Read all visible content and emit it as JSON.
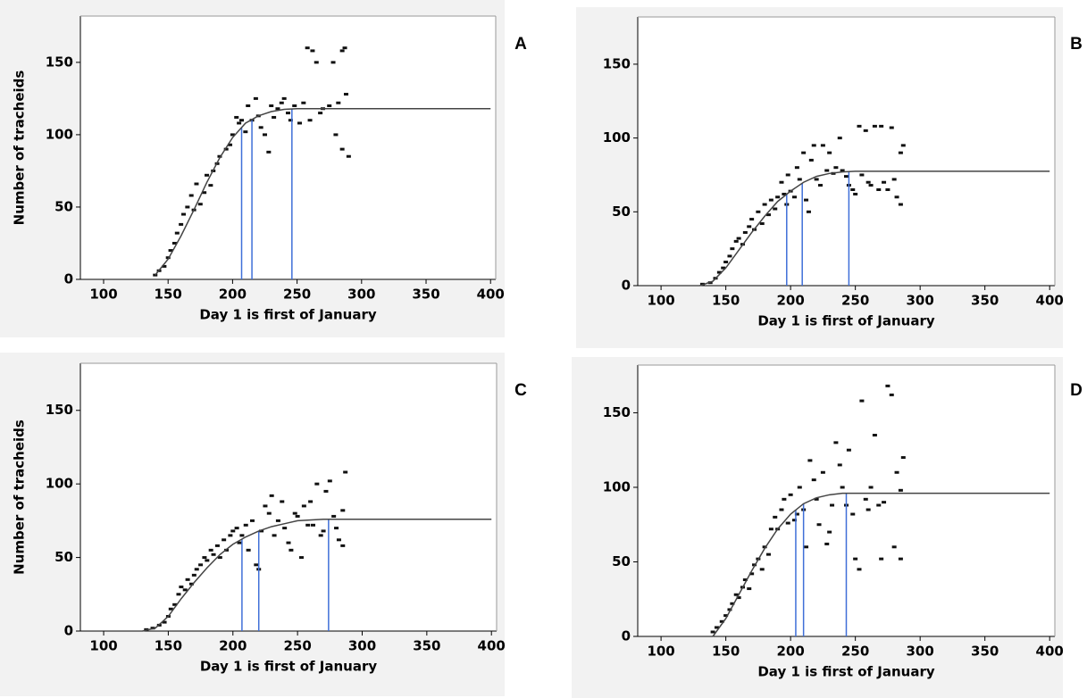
{
  "chart_data": [
    {
      "type": "scatter",
      "label": "A",
      "x_label": "Day 1 is first of January",
      "y_label": "Number of tracheids",
      "xlim": [
        82,
        404
      ],
      "ylim": [
        0,
        182
      ],
      "xticks": [
        100,
        150,
        200,
        250,
        300,
        350,
        400
      ],
      "yticks": [
        0,
        50,
        100,
        150
      ],
      "point_color": "#111111",
      "curve_color": "#444444",
      "vline_color": "#3f6fd8",
      "points": {
        "x": [
          140,
          143,
          147,
          150,
          152,
          155,
          157,
          160,
          162,
          165,
          168,
          170,
          172,
          175,
          178,
          180,
          183,
          185,
          188,
          190,
          195,
          198,
          200,
          203,
          205,
          207,
          210,
          212,
          215,
          218,
          220,
          222,
          225,
          228,
          230,
          232,
          235,
          238,
          240,
          243,
          245,
          248,
          252,
          255,
          258,
          260,
          262,
          265,
          268,
          270,
          275,
          278,
          280,
          282,
          285,
          285,
          288,
          287,
          290
        ],
        "y": [
          3,
          6,
          9,
          15,
          20,
          25,
          32,
          38,
          45,
          50,
          58,
          48,
          66,
          52,
          60,
          72,
          65,
          75,
          80,
          85,
          90,
          93,
          100,
          112,
          108,
          110,
          102,
          120,
          110,
          125,
          113,
          105,
          100,
          88,
          120,
          112,
          118,
          122,
          125,
          115,
          110,
          120,
          108,
          122,
          160,
          110,
          158,
          150,
          115,
          118,
          120,
          150,
          100,
          122,
          90,
          158,
          128,
          160,
          85
        ]
      },
      "curve": {
        "x": [
          140,
          150,
          160,
          170,
          180,
          190,
          200,
          210,
          220,
          230,
          240,
          250,
          300,
          400
        ],
        "y": [
          3,
          14,
          30,
          48,
          67,
          84,
          98,
          108,
          113,
          116,
          117.5,
          118,
          118,
          118
        ]
      },
      "vlines": [
        207,
        215,
        246
      ]
    },
    {
      "type": "scatter",
      "label": "B",
      "x_label": "Day 1 is first of January",
      "xlim": [
        82,
        404
      ],
      "ylim": [
        0,
        182
      ],
      "xticks": [
        100,
        150,
        200,
        250,
        300,
        350,
        400
      ],
      "yticks": [
        0,
        50,
        100,
        150
      ],
      "point_color": "#111111",
      "curve_color": "#444444",
      "vline_color": "#3f6fd8",
      "points": {
        "x": [
          132,
          138,
          142,
          145,
          148,
          150,
          153,
          155,
          158,
          160,
          163,
          165,
          168,
          170,
          172,
          175,
          178,
          180,
          183,
          185,
          188,
          190,
          193,
          195,
          197,
          198,
          200,
          203,
          205,
          207,
          210,
          212,
          214,
          216,
          218,
          220,
          223,
          225,
          228,
          230,
          233,
          235,
          238,
          240,
          243,
          245,
          248,
          250,
          253,
          255,
          258,
          260,
          262,
          265,
          268,
          270,
          272,
          275,
          278,
          280,
          282,
          285,
          285,
          287
        ],
        "y": [
          1,
          2,
          5,
          9,
          12,
          16,
          20,
          25,
          30,
          32,
          28,
          36,
          40,
          45,
          38,
          50,
          42,
          55,
          48,
          58,
          52,
          60,
          70,
          62,
          55,
          75,
          64,
          60,
          80,
          72,
          90,
          58,
          50,
          85,
          95,
          72,
          68,
          95,
          78,
          90,
          76,
          80,
          100,
          78,
          74,
          68,
          65,
          62,
          108,
          75,
          105,
          70,
          68,
          108,
          65,
          108,
          70,
          65,
          107,
          72,
          60,
          55,
          90,
          95
        ]
      },
      "curve": {
        "x": [
          130,
          140,
          150,
          160,
          170,
          180,
          190,
          200,
          210,
          220,
          230,
          240,
          250,
          300,
          400
        ],
        "y": [
          0,
          3,
          12,
          24,
          36,
          47,
          57,
          64,
          70,
          74,
          76,
          77,
          77.5,
          77.5,
          77.5
        ]
      },
      "vlines": [
        197,
        209,
        245
      ]
    },
    {
      "type": "scatter",
      "label": "C",
      "x_label": "Day 1 is first of January",
      "y_label": "Number of tracheids",
      "xlim": [
        82,
        404
      ],
      "ylim": [
        0,
        182
      ],
      "xticks": [
        100,
        150,
        200,
        250,
        300,
        350,
        400
      ],
      "yticks": [
        0,
        50,
        100,
        150
      ],
      "point_color": "#111111",
      "curve_color": "#444444",
      "vline_color": "#3f6fd8",
      "points": {
        "x": [
          133,
          138,
          143,
          147,
          150,
          152,
          155,
          158,
          160,
          163,
          165,
          168,
          170,
          172,
          175,
          178,
          180,
          183,
          185,
          188,
          190,
          193,
          195,
          198,
          200,
          203,
          205,
          207,
          210,
          212,
          215,
          218,
          220,
          222,
          225,
          228,
          230,
          232,
          235,
          238,
          240,
          243,
          245,
          248,
          250,
          253,
          255,
          258,
          260,
          262,
          265,
          268,
          270,
          272,
          275,
          278,
          280,
          282,
          285,
          287,
          285
        ],
        "y": [
          1,
          2,
          4,
          6,
          10,
          15,
          18,
          25,
          30,
          28,
          35,
          32,
          38,
          42,
          45,
          50,
          48,
          55,
          52,
          58,
          50,
          62,
          55,
          65,
          68,
          70,
          60,
          65,
          72,
          55,
          75,
          45,
          42,
          68,
          85,
          80,
          92,
          65,
          75,
          88,
          70,
          60,
          55,
          80,
          78,
          50,
          85,
          72,
          88,
          72,
          100,
          65,
          68,
          95,
          102,
          78,
          70,
          62,
          82,
          108,
          58
        ]
      },
      "curve": {
        "x": [
          130,
          140,
          150,
          160,
          170,
          180,
          190,
          200,
          210,
          220,
          230,
          240,
          250,
          270,
          300,
          400
        ],
        "y": [
          0,
          2,
          10,
          22,
          33,
          43,
          52,
          59,
          64,
          68,
          71,
          73,
          75,
          76,
          76,
          76
        ]
      },
      "vlines": [
        207,
        220,
        274
      ]
    },
    {
      "type": "scatter",
      "label": "D",
      "x_label": "Day 1 is first of January",
      "xlim": [
        82,
        404
      ],
      "ylim": [
        0,
        182
      ],
      "xticks": [
        100,
        150,
        200,
        250,
        300,
        350,
        400
      ],
      "yticks": [
        0,
        50,
        100,
        150
      ],
      "point_color": "#111111",
      "curve_color": "#444444",
      "vline_color": "#3f6fd8",
      "points": {
        "x": [
          140,
          143,
          147,
          150,
          153,
          155,
          158,
          160,
          163,
          165,
          168,
          170,
          172,
          175,
          178,
          180,
          183,
          185,
          188,
          190,
          193,
          195,
          198,
          200,
          203,
          205,
          207,
          210,
          212,
          215,
          218,
          220,
          222,
          225,
          228,
          230,
          232,
          235,
          238,
          240,
          243,
          245,
          248,
          250,
          253,
          255,
          258,
          260,
          262,
          265,
          268,
          270,
          272,
          275,
          278,
          280,
          282,
          285,
          285,
          287
        ],
        "y": [
          3,
          6,
          10,
          14,
          18,
          22,
          28,
          26,
          33,
          38,
          32,
          42,
          48,
          52,
          45,
          60,
          55,
          72,
          80,
          72,
          85,
          92,
          76,
          95,
          78,
          82,
          100,
          85,
          60,
          118,
          105,
          92,
          75,
          110,
          62,
          70,
          88,
          130,
          115,
          100,
          88,
          125,
          82,
          52,
          45,
          158,
          92,
          85,
          100,
          135,
          88,
          52,
          90,
          168,
          162,
          60,
          110,
          52,
          98,
          120
        ]
      },
      "curve": {
        "x": [
          140,
          150,
          160,
          170,
          180,
          190,
          200,
          210,
          220,
          230,
          240,
          300,
          400
        ],
        "y": [
          0,
          12,
          28,
          44,
          59,
          72,
          82,
          89,
          93,
          95,
          96,
          96,
          96
        ]
      },
      "vlines": [
        204,
        210,
        243
      ]
    }
  ]
}
